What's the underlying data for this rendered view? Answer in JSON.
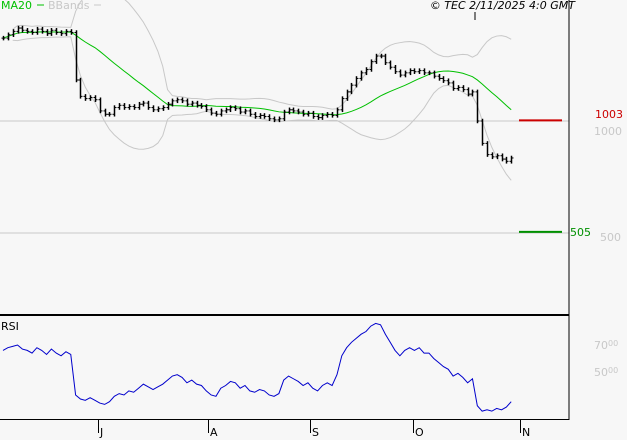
{
  "header": {
    "ma_legend": "MA20",
    "bbands_legend": "BBands",
    "copyright": "© TEC 2/11/2025 4:0 GMT"
  },
  "colors": {
    "background": "#f7f7f7",
    "price_bars": "#000000",
    "ma20": "#00c000",
    "bbands": "#c8c8c8",
    "resistance": "#cc0000",
    "support": "#009000",
    "rsi": "#0000cc",
    "gridline": "#c8c8c8"
  },
  "chart_data": [
    {
      "type": "ohlc",
      "title": "",
      "overlays": [
        "MA20",
        "BBands"
      ],
      "y_ticks": [
        "1000",
        "500"
      ],
      "ylim": [
        134,
        1540
      ],
      "x_ticks": [
        "J",
        "A",
        "S",
        "O",
        "N"
      ],
      "levels": [
        {
          "label": "1003",
          "value": 1003,
          "color": "#cc0000"
        },
        {
          "label": "505",
          "value": 505,
          "color": "#009000"
        }
      ],
      "close": [
        1370,
        1385,
        1400,
        1415,
        1405,
        1400,
        1395,
        1410,
        1400,
        1390,
        1405,
        1395,
        1390,
        1400,
        1395,
        1183,
        1110,
        1100,
        1105,
        1095,
        1045,
        1030,
        1030,
        1060,
        1070,
        1060,
        1065,
        1060,
        1075,
        1080,
        1060,
        1050,
        1055,
        1060,
        1075,
        1090,
        1095,
        1090,
        1075,
        1080,
        1070,
        1065,
        1050,
        1035,
        1030,
        1045,
        1050,
        1060,
        1055,
        1040,
        1045,
        1030,
        1020,
        1025,
        1020,
        1010,
        1005,
        1010,
        1040,
        1050,
        1045,
        1040,
        1030,
        1035,
        1020,
        1015,
        1025,
        1030,
        1025,
        1050,
        1100,
        1130,
        1160,
        1190,
        1215,
        1230,
        1265,
        1290,
        1290,
        1260,
        1240,
        1220,
        1205,
        1215,
        1225,
        1220,
        1225,
        1215,
        1215,
        1200,
        1190,
        1180,
        1170,
        1145,
        1150,
        1140,
        1120,
        1130,
        1000,
        900,
        850,
        840,
        845,
        830,
        820,
        835
      ]
    },
    {
      "type": "line",
      "title": "RSI",
      "y_ticks": [
        "70",
        "50"
      ],
      "ylim": [
        15,
        92
      ],
      "values": [
        66,
        68,
        69,
        70,
        67,
        66,
        64,
        68,
        66,
        63,
        67,
        64,
        62,
        65,
        63,
        33,
        30,
        29,
        31,
        29,
        27,
        26,
        28,
        32,
        34,
        33,
        36,
        35,
        38,
        41,
        39,
        37,
        39,
        41,
        44,
        47,
        48,
        46,
        42,
        44,
        41,
        40,
        36,
        33,
        32,
        38,
        40,
        43,
        42,
        38,
        40,
        36,
        35,
        37,
        36,
        33,
        32,
        34,
        44,
        47,
        45,
        43,
        40,
        42,
        38,
        36,
        40,
        42,
        40,
        48,
        62,
        68,
        72,
        75,
        78,
        80,
        84,
        86,
        85,
        78,
        72,
        66,
        62,
        66,
        68,
        66,
        68,
        64,
        64,
        60,
        57,
        54,
        52,
        47,
        49,
        46,
        42,
        45,
        25,
        21,
        22,
        21,
        23,
        22,
        24,
        28
      ]
    }
  ]
}
